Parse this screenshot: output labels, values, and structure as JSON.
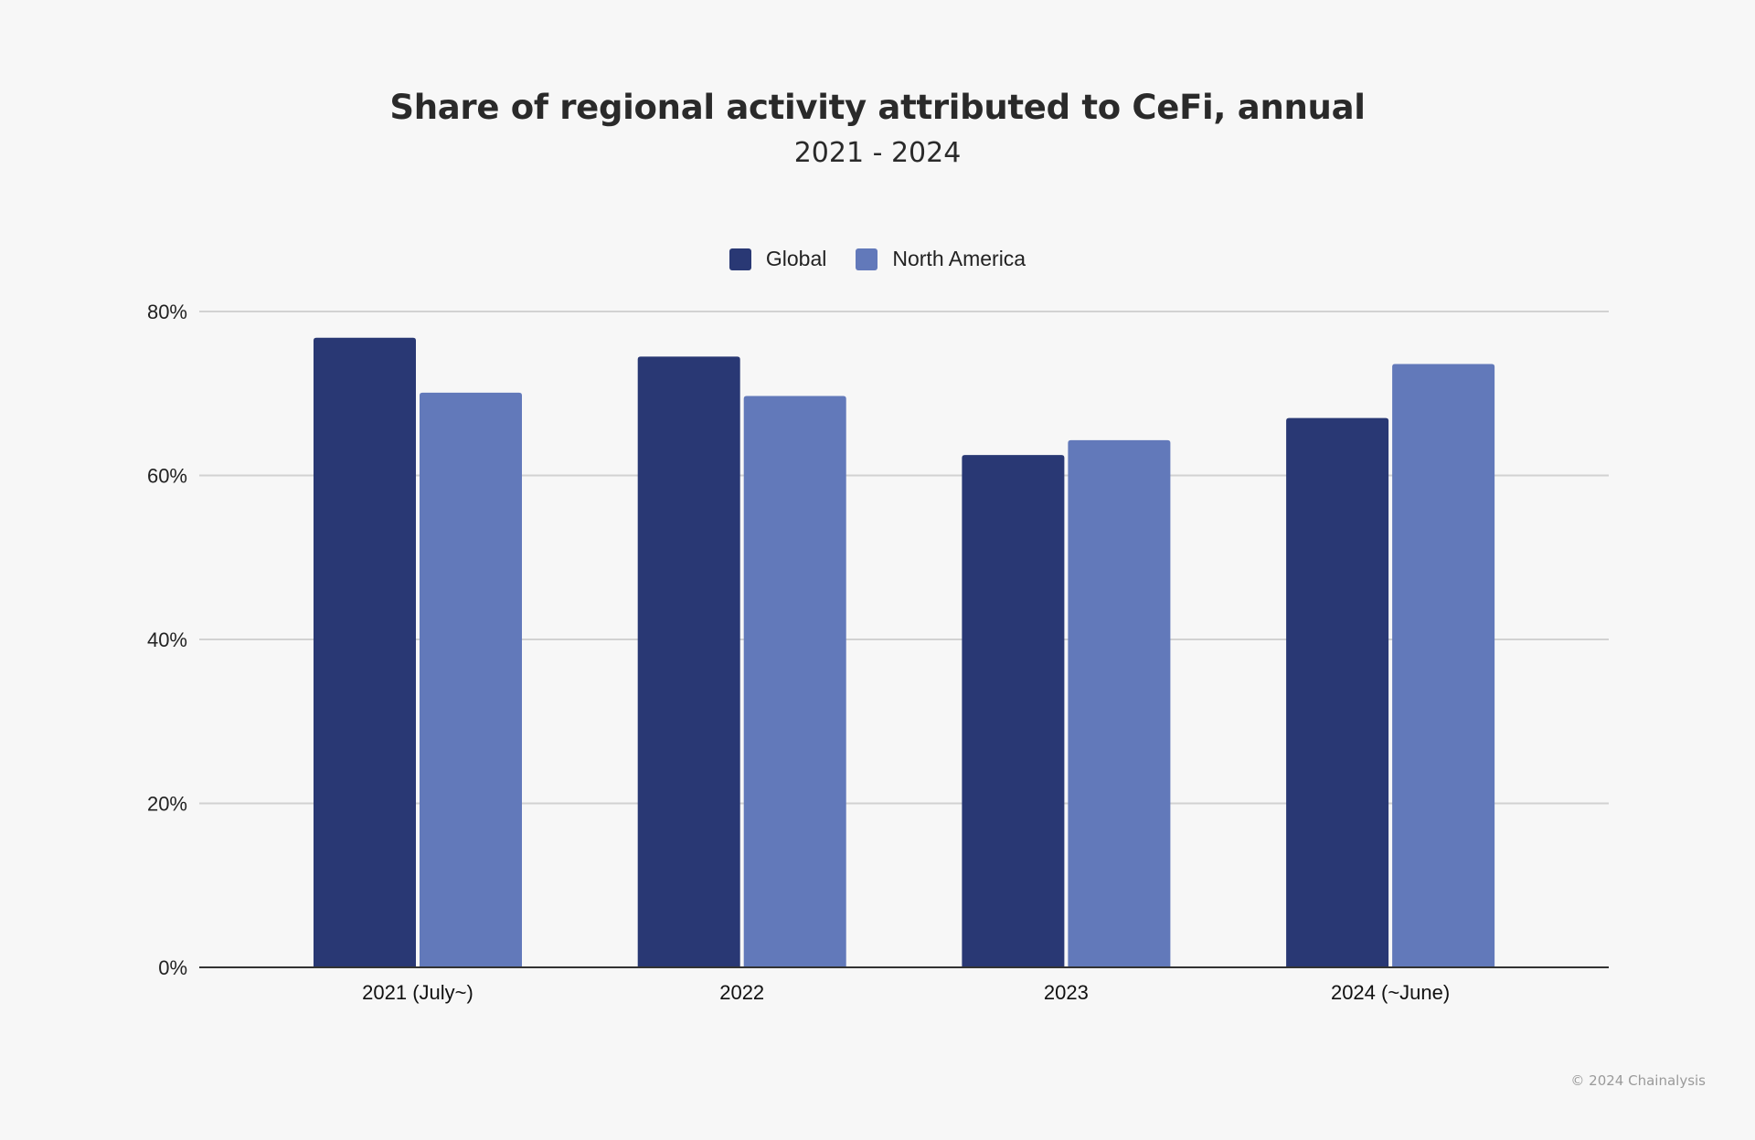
{
  "chart_data": {
    "type": "bar",
    "title": "Share of regional activity attributed to CeFi, annual",
    "subtitle": "2021 - 2024",
    "xlabel": "",
    "ylabel": "",
    "categories": [
      "2021 (July~)",
      "2022",
      "2023",
      "2024 (~June)"
    ],
    "series": [
      {
        "name": "Global",
        "color": "#293874",
        "values": [
          76.8,
          74.5,
          62.5,
          67.0
        ]
      },
      {
        "name": "North America",
        "color": "#6279ba",
        "values": [
          70.1,
          69.7,
          64.3,
          73.6
        ]
      }
    ],
    "ylim": [
      0,
      80
    ],
    "yticks": [
      0,
      20,
      40,
      60,
      80
    ],
    "ytick_labels": [
      "0%",
      "20%",
      "40%",
      "60%",
      "80%"
    ],
    "grid": true,
    "legend_position": "top-center"
  },
  "footer": {
    "copyright": "© 2024 Chainalysis"
  }
}
